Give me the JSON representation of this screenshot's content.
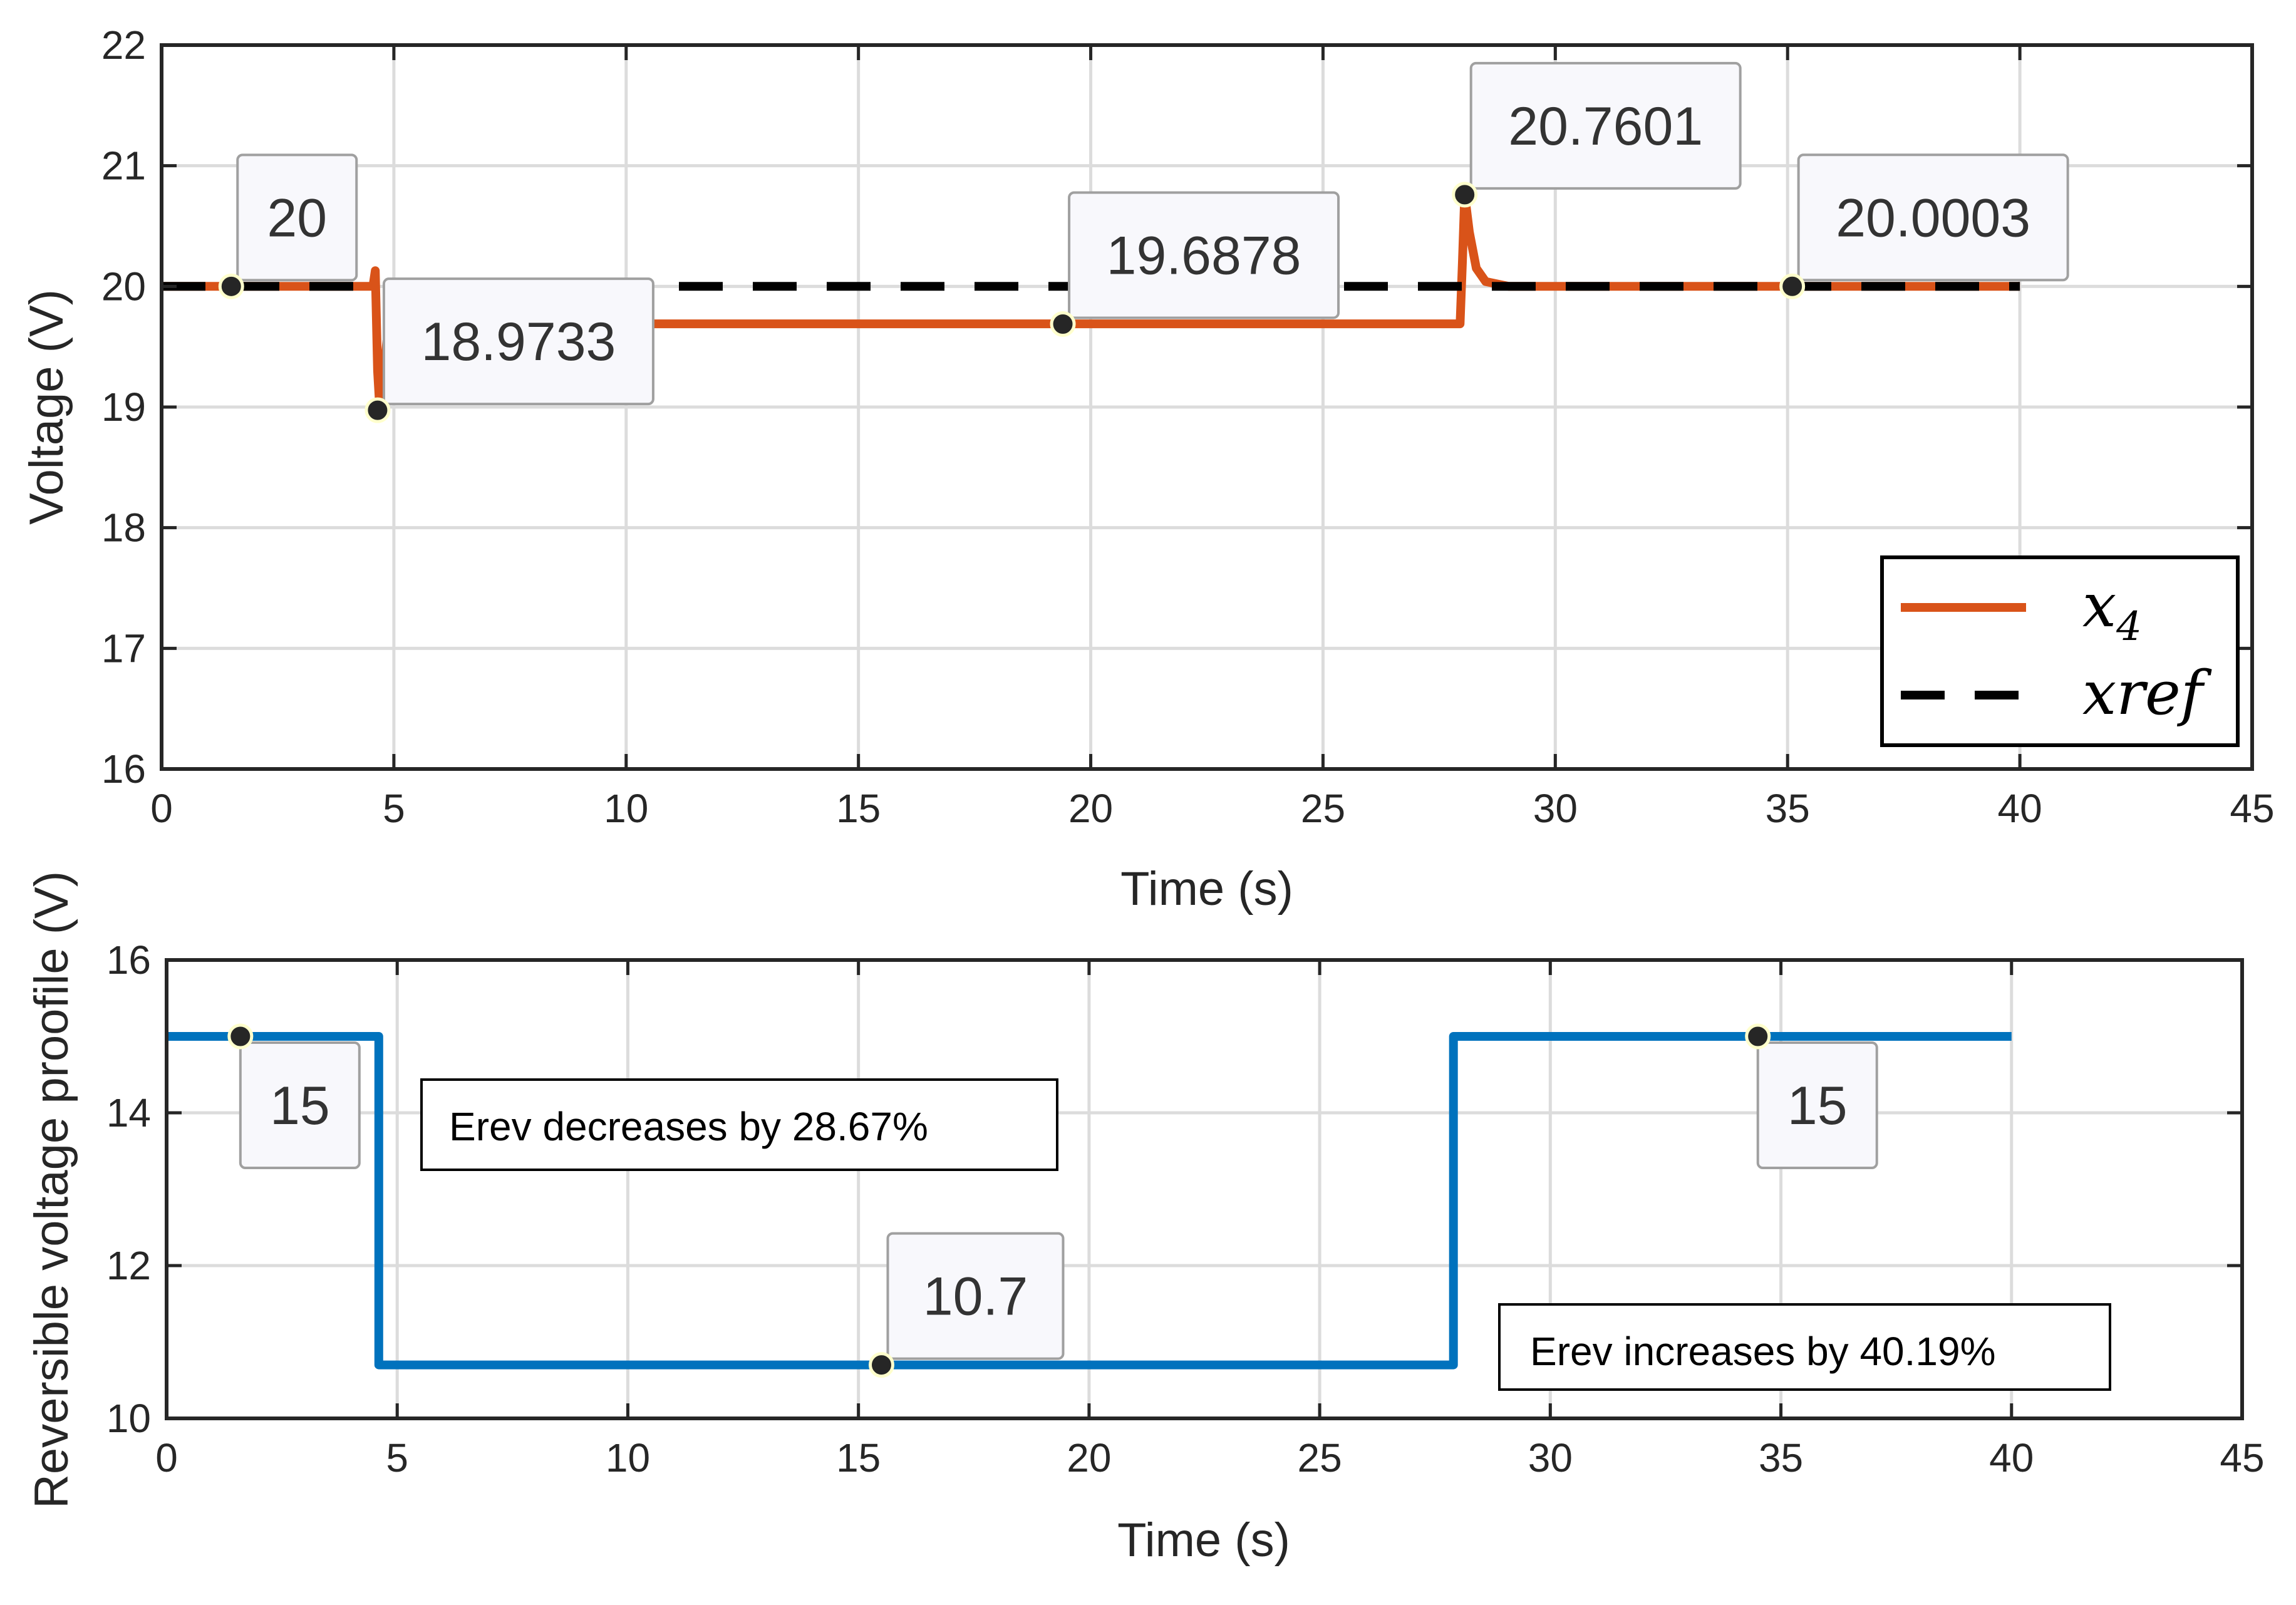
{
  "colors": {
    "x4": "#d95319",
    "xref": "#000000",
    "erev": "#0072bd"
  },
  "chart_data": [
    {
      "type": "line",
      "title": "",
      "xlabel": "Time (s)",
      "ylabel": "Voltage (V)",
      "xlim": [
        0,
        45
      ],
      "ylim": [
        16,
        22
      ],
      "xticks": [
        "0",
        "5",
        "10",
        "15",
        "20",
        "25",
        "30",
        "35",
        "40",
        "45"
      ],
      "yticks": [
        "16",
        "17",
        "18",
        "19",
        "20",
        "21",
        "22"
      ],
      "grid": true,
      "legend": {
        "position": "bottom-right",
        "entries": [
          {
            "name": "x",
            "sub": "4",
            "style": "solid"
          },
          {
            "name": "xref",
            "sub": "",
            "style": "dashed"
          }
        ]
      },
      "series": [
        {
          "name": "x4",
          "style": "solid",
          "x": [
            0,
            4.55,
            4.6,
            4.65,
            4.7,
            4.75,
            4.85,
            5.0,
            5.3,
            27.95,
            28.0,
            28.05,
            28.15,
            28.3,
            28.5,
            29.0,
            40
          ],
          "y": [
            20,
            20,
            20.13,
            19.3,
            18.97,
            19.2,
            19.55,
            19.67,
            19.69,
            19.69,
            20.2,
            20.76,
            20.45,
            20.15,
            20.04,
            20.0,
            20.0
          ]
        },
        {
          "name": "xref",
          "style": "dashed",
          "x": [
            0,
            40
          ],
          "y": [
            20,
            20
          ]
        }
      ],
      "datatips": [
        {
          "x": 1.5,
          "y": 20,
          "label": "20",
          "anchor": "above-right"
        },
        {
          "x": 4.65,
          "y": 18.9733,
          "label": "18.9733",
          "anchor": "above-right"
        },
        {
          "x": 19.4,
          "y": 19.6878,
          "label": "19.6878",
          "anchor": "above-right"
        },
        {
          "x": 28.05,
          "y": 20.7601,
          "label": "20.7601",
          "anchor": "above-right"
        },
        {
          "x": 35.1,
          "y": 20.0003,
          "label": "20.0003",
          "anchor": "above-right"
        }
      ]
    },
    {
      "type": "line",
      "title": "",
      "xlabel": "Time (s)",
      "ylabel": "Reversible voltage proofile (V)",
      "xlim": [
        0,
        45
      ],
      "ylim": [
        10,
        16
      ],
      "xticks": [
        "0",
        "5",
        "10",
        "15",
        "20",
        "25",
        "30",
        "35",
        "40",
        "45"
      ],
      "yticks": [
        "10",
        "12",
        "14",
        "16"
      ],
      "grid": true,
      "series": [
        {
          "name": "Erev",
          "style": "solid",
          "x": [
            0,
            4.6,
            4.6,
            27.9,
            27.9,
            40
          ],
          "y": [
            15,
            15,
            10.7,
            10.7,
            15,
            15
          ]
        }
      ],
      "datatips": [
        {
          "x": 1.6,
          "y": 15,
          "label": "15",
          "anchor": "below"
        },
        {
          "x": 15.5,
          "y": 10.7,
          "label": "10.7",
          "anchor": "above-right"
        },
        {
          "x": 34.5,
          "y": 15,
          "label": "15",
          "anchor": "below"
        }
      ],
      "annotations": [
        {
          "text": "Erev decreases by 28.67%"
        },
        {
          "text": "Erev increases by 40.19%"
        }
      ]
    }
  ]
}
